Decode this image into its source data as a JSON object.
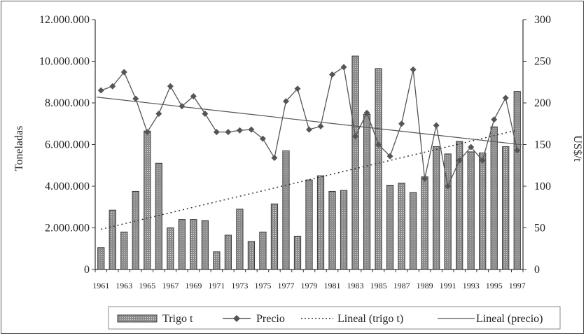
{
  "chart_data": {
    "type": "bar",
    "categories": [
      "1961",
      "1962",
      "1963",
      "1964",
      "1965",
      "1966",
      "1967",
      "1968",
      "1969",
      "1970",
      "1971",
      "1972",
      "1973",
      "1974",
      "1975",
      "1976",
      "1977",
      "1978",
      "1979",
      "1980",
      "1981",
      "1982",
      "1983",
      "1984",
      "1985",
      "1986",
      "1987",
      "1988",
      "1989",
      "1990",
      "1991",
      "1992",
      "1993",
      "1994",
      "1995",
      "1996",
      "1997"
    ],
    "x_tick_labels": [
      "1961",
      "1963",
      "1965",
      "1967",
      "1969",
      "1971",
      "1973",
      "1975",
      "1977",
      "1979",
      "1981",
      "1983",
      "1985",
      "1987",
      "1989",
      "1991",
      "1993",
      "1995",
      "1997"
    ],
    "ylabel": "Toneladas",
    "y2label": "US$/t",
    "ylim": [
      0,
      12000000
    ],
    "y2lim": [
      0,
      300
    ],
    "y_tick_labels": [
      "0",
      "2.000.000",
      "4.000.000",
      "6.000.000",
      "8.000.000",
      "10.000.000",
      "12.000.000"
    ],
    "y_tick_values": [
      0,
      2000000,
      4000000,
      6000000,
      8000000,
      10000000,
      12000000
    ],
    "y2_tick_labels": [
      "0",
      "50",
      "100",
      "150",
      "200",
      "250",
      "300"
    ],
    "y2_tick_values": [
      0,
      50,
      100,
      150,
      200,
      250,
      300
    ],
    "series": [
      {
        "name": "Trigo t",
        "kind": "bar",
        "axis": "left",
        "values": [
          1050000,
          2850000,
          1800000,
          3750000,
          6650000,
          5100000,
          2000000,
          2400000,
          2400000,
          2350000,
          850000,
          1650000,
          2900000,
          1350000,
          1800000,
          3150000,
          5700000,
          1600000,
          4300000,
          4500000,
          3750000,
          3800000,
          10250000,
          7450000,
          9650000,
          4050000,
          4150000,
          3700000,
          4450000,
          5900000,
          5550000,
          6150000,
          5650000,
          5600000,
          6850000,
          5900000,
          8550000
        ]
      },
      {
        "name": "Precio",
        "kind": "line",
        "marker": "diamond",
        "axis": "right",
        "values": [
          215,
          220,
          237,
          205,
          165,
          187,
          220,
          196,
          208,
          187,
          165,
          165,
          167,
          168,
          157,
          134,
          202,
          217,
          168,
          172,
          234,
          243,
          160,
          188,
          150,
          136,
          175,
          240,
          109,
          173,
          100,
          131,
          147,
          131,
          180,
          206,
          143
        ]
      },
      {
        "name": "Lineal (trigo t)",
        "kind": "trendline",
        "style": "dotted",
        "axis": "left"
      },
      {
        "name": "Lineal (precio)",
        "kind": "trendline",
        "style": "solid",
        "axis": "right"
      }
    ],
    "legend": {
      "placement": "bottom-right",
      "items": [
        "Trigo t",
        "Precio",
        "Lineal (trigo t)",
        "Lineal (precio)"
      ]
    },
    "grid": false,
    "colors": {
      "bar_fill": "#8c8c8c",
      "bar_stroke": "#3a3a3a",
      "line": "#555555",
      "axis": "#333333"
    }
  }
}
